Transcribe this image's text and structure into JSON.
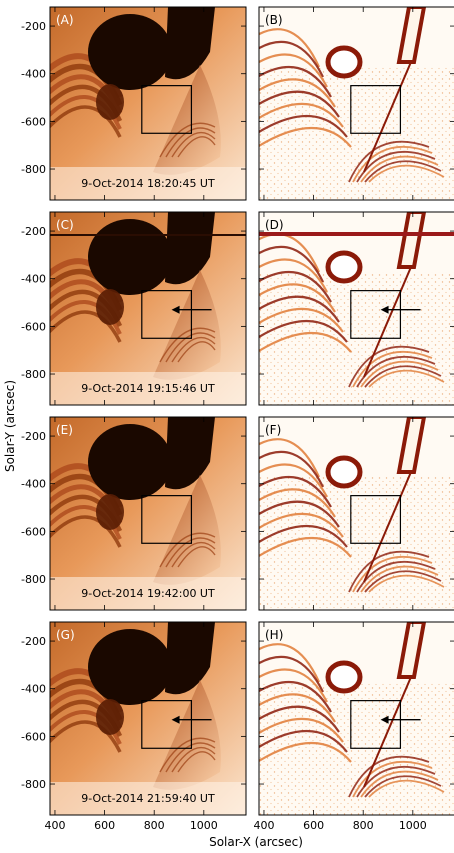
{
  "figure": {
    "ylabel": "Solar-Y (arcsec)",
    "xlabel": "Solar-X (arcsec)",
    "y_ticks": [
      "-200",
      "-400",
      "-600",
      "-800"
    ],
    "x_ticks": [
      "400",
      "600",
      "800",
      "1000"
    ],
    "panels": [
      {
        "label": "(A)",
        "timestamp": "9-Oct-2014 18:20:45 UT",
        "arrow": false
      },
      {
        "label": "(B)",
        "timestamp": "",
        "arrow": false
      },
      {
        "label": "(C)",
        "timestamp": "9-Oct-2014 19:15:46 UT",
        "arrow": true
      },
      {
        "label": "(D)",
        "timestamp": "",
        "arrow": true
      },
      {
        "label": "(E)",
        "timestamp": "9-Oct-2014 19:42:00 UT",
        "arrow": false
      },
      {
        "label": "(F)",
        "timestamp": "",
        "arrow": false
      },
      {
        "label": "(G)",
        "timestamp": "9-Oct-2014 21:59:40 UT",
        "arrow": true
      },
      {
        "label": "(H)",
        "timestamp": "",
        "arrow": true
      }
    ],
    "colors": {
      "dark": "#1a0800",
      "mid": "#b0501a",
      "light": "#f6c08a",
      "diff_bg": "#fffaf3",
      "diff_dark": "#8b1a08",
      "diff_light": "#e07a35"
    }
  }
}
